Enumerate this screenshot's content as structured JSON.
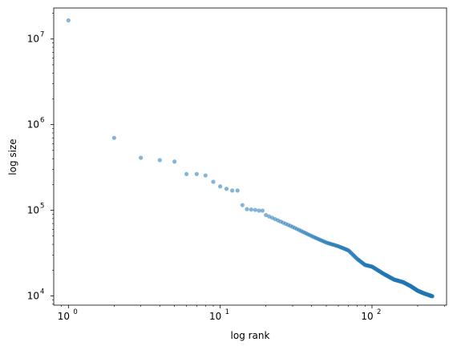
{
  "chart_data": {
    "type": "scatter",
    "xlabel": "log rank",
    "ylabel": "log size",
    "xscale": "log",
    "yscale": "log",
    "xlim": [
      0.8,
      310
    ],
    "ylim": [
      7800,
      23000000
    ],
    "grid": false,
    "marker_color": "#1f77b4",
    "marker_alpha": 0.55,
    "x_ticks": [
      {
        "value": 1,
        "base": "10",
        "exp": "0"
      },
      {
        "value": 10,
        "base": "10",
        "exp": "1"
      },
      {
        "value": 100,
        "base": "10",
        "exp": "2"
      }
    ],
    "y_ticks": [
      {
        "value": 10000,
        "base": "10",
        "exp": "4"
      },
      {
        "value": 100000,
        "base": "10",
        "exp": "5"
      },
      {
        "value": 1000000,
        "base": "10",
        "exp": "6"
      },
      {
        "value": 10000000,
        "base": "10",
        "exp": "7"
      }
    ],
    "leading_points": [
      [
        1,
        16500000
      ],
      [
        2,
        700000
      ],
      [
        3,
        410000
      ],
      [
        4,
        385000
      ],
      [
        5,
        370000
      ],
      [
        6,
        265000
      ],
      [
        7,
        265000
      ],
      [
        8,
        255000
      ],
      [
        9,
        215000
      ],
      [
        10,
        190000
      ],
      [
        11,
        178000
      ],
      [
        12,
        170000
      ],
      [
        13,
        170000
      ],
      [
        14,
        115000
      ],
      [
        15,
        103000
      ],
      [
        16,
        102000
      ],
      [
        17,
        101000
      ],
      [
        18,
        99000
      ],
      [
        19,
        99000
      ],
      [
        20,
        88000
      ]
    ],
    "tail_curve": [
      [
        20,
        88000
      ],
      [
        30,
        64000
      ],
      [
        40,
        50000
      ],
      [
        50,
        42000
      ],
      [
        60,
        38000
      ],
      [
        70,
        34000
      ],
      [
        80,
        27000
      ],
      [
        90,
        23000
      ],
      [
        100,
        22000
      ],
      [
        120,
        18000
      ],
      [
        140,
        15500
      ],
      [
        160,
        14500
      ],
      [
        180,
        13000
      ],
      [
        200,
        11500
      ],
      [
        220,
        10700
      ],
      [
        250,
        9900
      ]
    ],
    "n_points": 250
  }
}
